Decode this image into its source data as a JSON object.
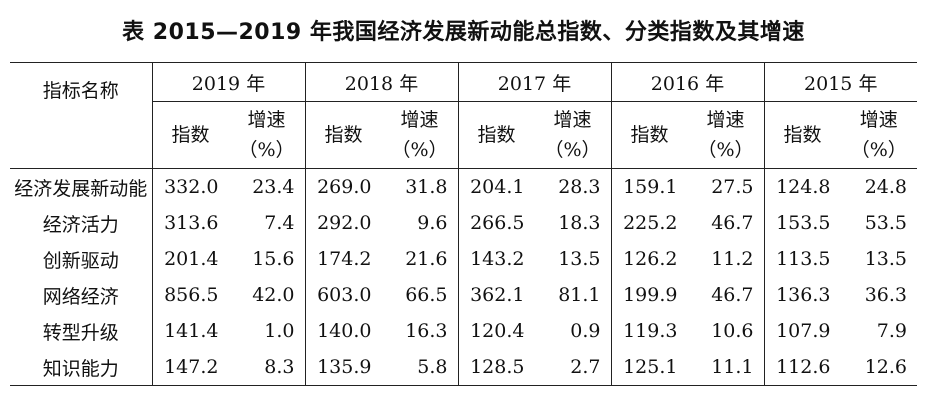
{
  "title": "表 2015—2019 年我国经济发展新动能总指数、分类指数及其增速",
  "header": {
    "name_label": "指标名称",
    "years": [
      "2019 年",
      "2018 年",
      "2017 年",
      "2016 年",
      "2015 年"
    ],
    "index_label": "指数",
    "growth_label": "增速",
    "growth_unit": "（%）"
  },
  "rows": [
    {
      "name": "经济发展新动能",
      "values": [
        "332.0",
        "23.4",
        "269.0",
        "31.8",
        "204.1",
        "28.3",
        "159.1",
        "27.5",
        "124.8",
        "24.8"
      ]
    },
    {
      "name": "经济活力",
      "values": [
        "313.6",
        "7.4",
        "292.0",
        "9.6",
        "266.5",
        "18.3",
        "225.2",
        "46.7",
        "153.5",
        "53.5"
      ]
    },
    {
      "name": "创新驱动",
      "values": [
        "201.4",
        "15.6",
        "174.2",
        "21.6",
        "143.2",
        "13.5",
        "126.2",
        "11.2",
        "113.5",
        "13.5"
      ]
    },
    {
      "name": "网络经济",
      "values": [
        "856.5",
        "42.0",
        "603.0",
        "66.5",
        "362.1",
        "81.1",
        "199.9",
        "46.7",
        "136.3",
        "36.3"
      ]
    },
    {
      "name": "转型升级",
      "values": [
        "141.4",
        "1.0",
        "140.0",
        "16.3",
        "120.4",
        "0.9",
        "119.3",
        "10.6",
        "107.9",
        "7.9"
      ]
    },
    {
      "name": "知识能力",
      "values": [
        "147.2",
        "8.3",
        "135.9",
        "5.8",
        "128.5",
        "2.7",
        "125.1",
        "11.1",
        "112.6",
        "12.6"
      ]
    }
  ]
}
